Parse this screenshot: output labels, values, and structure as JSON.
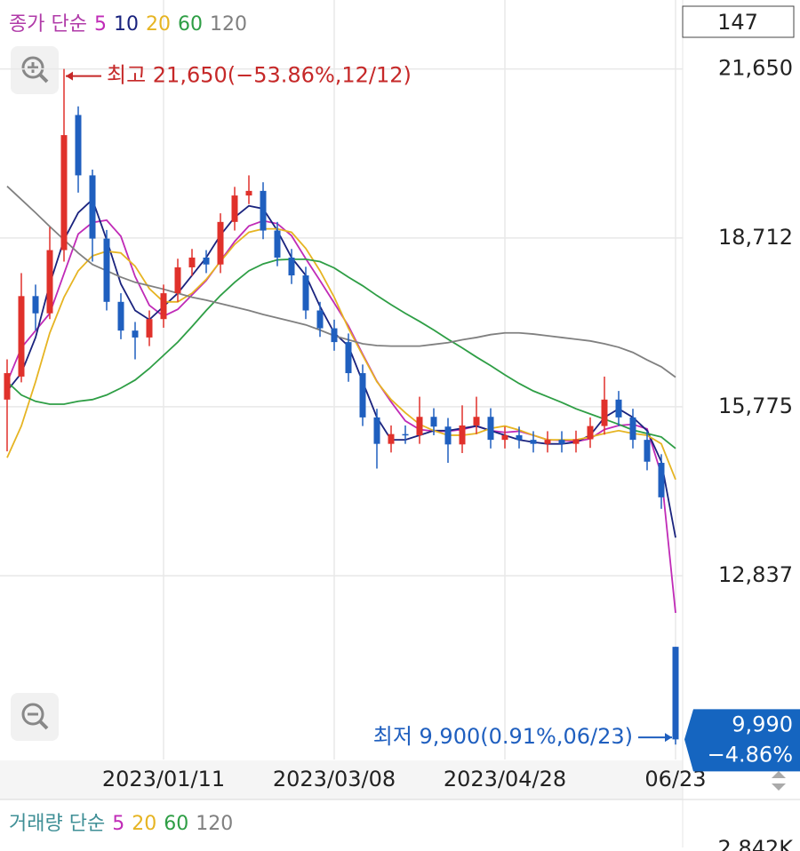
{
  "chart_data": {
    "type": "candlestick",
    "legend_title": "종가 단순",
    "info_box": "147",
    "categories": [
      null,
      null,
      null,
      null,
      null,
      null,
      null,
      null,
      null,
      null,
      null,
      "2023/01/11",
      null,
      null,
      null,
      null,
      null,
      null,
      null,
      null,
      null,
      null,
      null,
      "2023/03/08",
      null,
      null,
      null,
      null,
      null,
      null,
      null,
      null,
      null,
      null,
      null,
      "2023/04/28",
      null,
      null,
      null,
      null,
      null,
      null,
      null,
      null,
      null,
      null,
      null,
      "06/23"
    ],
    "open": [
      15900,
      16300,
      17700,
      17400,
      18500,
      20850,
      19800,
      18700,
      17600,
      17100,
      16980,
      17300,
      17750,
      18200,
      18370,
      18250,
      18990,
      19450,
      19530,
      18840,
      18370,
      18060,
      17450,
      17140,
      16900,
      16360,
      15590,
      15130,
      15300,
      15280,
      15600,
      15430,
      15120,
      15450,
      15600,
      15200,
      15280,
      15200,
      15130,
      15200,
      15130,
      15210,
      15440,
      15900,
      15590,
      15200,
      14800,
      11600
    ],
    "high": [
      16600,
      18100,
      17900,
      18900,
      21650,
      21000,
      19900,
      18850,
      17750,
      17250,
      17450,
      17900,
      18350,
      18520,
      18500,
      19140,
      19600,
      19800,
      19680,
      18990,
      18520,
      18210,
      17600,
      17290,
      17050,
      16510,
      15740,
      15450,
      15450,
      15950,
      15750,
      15580,
      15800,
      15950,
      15750,
      15430,
      15430,
      15350,
      15350,
      15350,
      15360,
      15590,
      16300,
      16050,
      15740,
      15350,
      14950,
      11600
    ],
    "low": [
      15000,
      16200,
      17100,
      17300,
      18300,
      19500,
      18300,
      17450,
      16950,
      16600,
      16830,
      17150,
      17600,
      18050,
      18100,
      18100,
      18840,
      19300,
      18690,
      18220,
      17910,
      17300,
      16990,
      16750,
      16210,
      15440,
      14700,
      14980,
      15130,
      15130,
      15280,
      14800,
      14970,
      15300,
      15050,
      15050,
      15050,
      14980,
      14980,
      14980,
      14980,
      15060,
      15290,
      15440,
      15050,
      14670,
      14000,
      9900
    ],
    "close": [
      16360,
      17700,
      17400,
      18500,
      20500,
      19800,
      18700,
      17600,
      17100,
      16980,
      17300,
      17750,
      18200,
      18370,
      18250,
      18990,
      19450,
      19530,
      18840,
      18370,
      18060,
      17450,
      17140,
      16900,
      16360,
      15590,
      15130,
      15300,
      15280,
      15600,
      15430,
      15120,
      15450,
      15600,
      15200,
      15280,
      15200,
      15130,
      15200,
      15130,
      15210,
      15440,
      15900,
      15590,
      15200,
      14820,
      14200,
      9990
    ],
    "up_color": "#e0312b",
    "down_color": "#1f5fbf",
    "series": [
      {
        "name": "5",
        "color": "#c02bb7",
        "values": [
          16200,
          16800,
          17100,
          17400,
          18090,
          18780,
          18980,
          19020,
          18740,
          18040,
          17540,
          17350,
          17470,
          17720,
          17970,
          18310,
          18650,
          18920,
          19010,
          18960,
          18750,
          18350,
          17970,
          17580,
          17180,
          16690,
          16220,
          15860,
          15530,
          15380,
          15350,
          15350,
          15380,
          15440,
          15360,
          15330,
          15350,
          15280,
          15200,
          15190,
          15170,
          15220,
          15380,
          15450,
          15470,
          15390,
          14600,
          12190
        ]
      },
      {
        "name": "10",
        "color": "#1a237e",
        "values": [
          16050,
          16360,
          16980,
          17910,
          18680,
          19150,
          19380,
          18680,
          17910,
          17450,
          17290,
          17520,
          17750,
          18060,
          18370,
          18760,
          19070,
          19270,
          19220,
          18840,
          18370,
          18060,
          17520,
          17060,
          16830,
          16210,
          15590,
          15200,
          15200,
          15280,
          15360,
          15360,
          15400,
          15440,
          15360,
          15280,
          15200,
          15160,
          15130,
          15130,
          15160,
          15280,
          15590,
          15740,
          15590,
          15360,
          14820,
          13500
        ]
      },
      {
        "name": "20",
        "color": "#e6b422",
        "values": [
          14890,
          15440,
          16210,
          17060,
          17680,
          18140,
          18400,
          18480,
          18450,
          18220,
          17830,
          17600,
          17600,
          17750,
          17990,
          18300,
          18600,
          18810,
          18870,
          18870,
          18810,
          18530,
          18140,
          17680,
          17140,
          16670,
          16210,
          15900,
          15670,
          15470,
          15360,
          15280,
          15280,
          15310,
          15400,
          15440,
          15370,
          15280,
          15200,
          15200,
          15200,
          15250,
          15310,
          15360,
          15310,
          15280,
          15130,
          14510
        ]
      },
      {
        "name": "60",
        "color": "#2e9e45",
        "values": [
          16210,
          15980,
          15870,
          15820,
          15820,
          15870,
          15900,
          15980,
          16100,
          16240,
          16440,
          16670,
          16900,
          17170,
          17450,
          17710,
          17940,
          18140,
          18260,
          18330,
          18340,
          18340,
          18300,
          18190,
          18030,
          17880,
          17710,
          17550,
          17400,
          17260,
          17110,
          16950,
          16800,
          16640,
          16490,
          16330,
          16180,
          16050,
          15950,
          15850,
          15740,
          15650,
          15560,
          15470,
          15370,
          15310,
          15250,
          15050
        ]
      },
      {
        "name": "120",
        "color": "#808080",
        "values": [
          19610,
          19380,
          19150,
          18910,
          18680,
          18450,
          18250,
          18140,
          18030,
          17940,
          17880,
          17820,
          17750,
          17680,
          17630,
          17570,
          17510,
          17450,
          17380,
          17320,
          17260,
          17200,
          17110,
          17010,
          16940,
          16870,
          16840,
          16830,
          16830,
          16830,
          16860,
          16890,
          16940,
          16980,
          17030,
          17060,
          17060,
          17040,
          17010,
          16980,
          16950,
          16920,
          16870,
          16810,
          16720,
          16590,
          16470,
          16290
        ]
      }
    ],
    "ylim": [
      9640,
      22850
    ],
    "yticks": [
      {
        "value": 21650,
        "label": "21,650"
      },
      {
        "value": 18712,
        "label": "18,712"
      },
      {
        "value": 15775,
        "label": "15,775"
      },
      {
        "value": 12837,
        "label": "12,837"
      }
    ],
    "grid": true,
    "annotations": {
      "high": "최고 21,650(−53.86%,12/12)",
      "low": "최저 9,900(0.91%,06/23)"
    },
    "last_price_label": "9,990",
    "change_label": "−4.86%",
    "volume_legend": {
      "title": "거래량 단순",
      "series": [
        {
          "name": "5",
          "color": "#c02bb7"
        },
        {
          "name": "20",
          "color": "#e6b422"
        },
        {
          "name": "60",
          "color": "#2e9e45"
        },
        {
          "name": "120",
          "color": "#808080"
        }
      ]
    },
    "volume_top_label": "2,842K"
  }
}
